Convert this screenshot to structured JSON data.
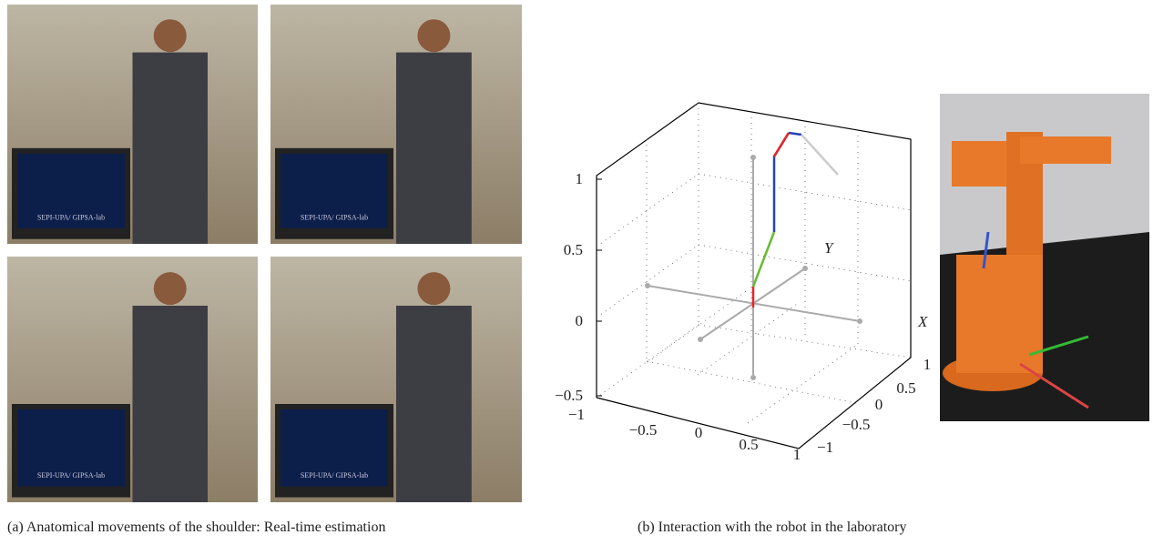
{
  "panel_a": {
    "caption": "(a) Anatomical movements of the shoulder: Real-time estimation",
    "monitor_text": "SEPI-UPA/ GIPSA-lab"
  },
  "panel_b": {
    "caption": "(b) Interaction with the robot in the laboratory",
    "plot": {
      "z_ticks": [
        "1",
        "0.5",
        "0",
        "−0.5"
      ],
      "front_ticks": [
        "−1",
        "−0.5",
        "0",
        "0.5",
        "1"
      ],
      "side_ticks": [
        "−1",
        "−0.5",
        "0",
        "0.5",
        "1"
      ],
      "y_label": "Y",
      "x_label": "X"
    }
  }
}
